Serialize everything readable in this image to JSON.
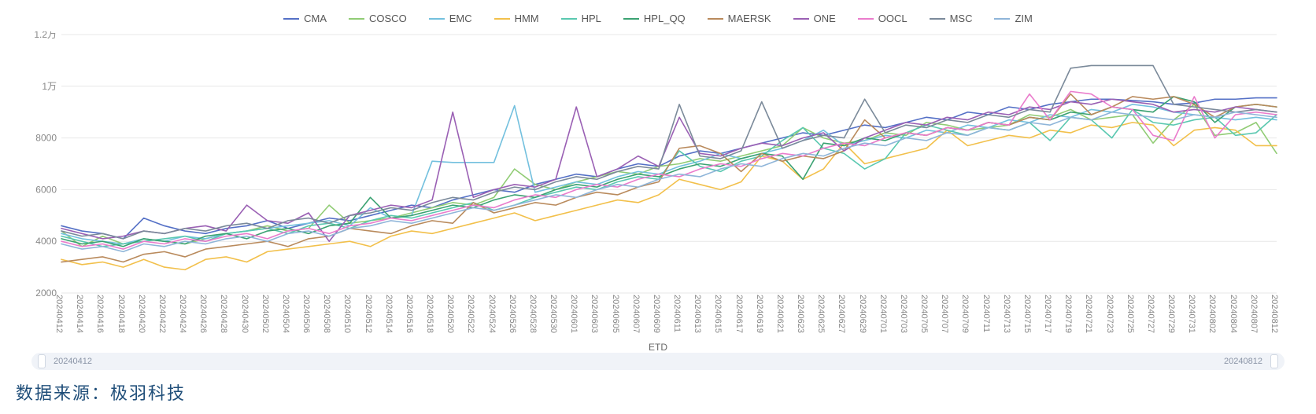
{
  "chart": {
    "type": "line",
    "background_color": "#ffffff",
    "grid_color": "#e7e7e7",
    "axis_label_color": "#888888",
    "axis_label_fontsize": 12,
    "legend_fontsize": 13,
    "legend_text_color": "#555555",
    "line_width": 1.6,
    "ylim": [
      2000,
      12000
    ],
    "yticks": [
      2000,
      4000,
      6000,
      8000,
      10000,
      12000
    ],
    "ytick_labels": [
      "2000",
      "4000",
      "6000",
      "8000",
      "1万",
      "1.2万"
    ],
    "x_axis_title": "ETD",
    "x_categories": [
      "20240412",
      "20240414",
      "20240416",
      "20240418",
      "20240420",
      "20240422",
      "20240424",
      "20240426",
      "20240428",
      "20240430",
      "20240502",
      "20240504",
      "20240506",
      "20240508",
      "20240510",
      "20240512",
      "20240514",
      "20240516",
      "20240518",
      "20240520",
      "20240522",
      "20240524",
      "20240526",
      "20240528",
      "20240530",
      "20240601",
      "20240603",
      "20240605",
      "20240607",
      "20240609",
      "20240611",
      "20240613",
      "20240615",
      "20240617",
      "20240619",
      "20240621",
      "20240623",
      "20240625",
      "20240627",
      "20240629",
      "20240701",
      "20240703",
      "20240705",
      "20240707",
      "20240709",
      "20240711",
      "20240713",
      "20240715",
      "20240717",
      "20240719",
      "20240721",
      "20240723",
      "20240725",
      "20240727",
      "20240729",
      "20240731",
      "20240802",
      "20240804",
      "20240807",
      "20240812"
    ],
    "series": [
      {
        "name": "CMA",
        "color": "#5470c6",
        "data": [
          4600,
          4400,
          4300,
          4100,
          4900,
          4600,
          4400,
          4300,
          4500,
          4600,
          4800,
          4500,
          4700,
          4900,
          4800,
          5000,
          5200,
          5400,
          5300,
          5600,
          5800,
          6000,
          5900,
          6200,
          6400,
          6600,
          6500,
          6800,
          7000,
          6900,
          7300,
          7500,
          7400,
          7600,
          7800,
          8000,
          8200,
          8100,
          8300,
          8500,
          8400,
          8600,
          8800,
          8700,
          9000,
          8900,
          9200,
          9100,
          9300,
          9400,
          9500,
          9500,
          9450,
          9400,
          9300,
          9350,
          9500,
          9500,
          9550,
          9550
        ]
      },
      {
        "name": "COSCO",
        "color": "#91cc75",
        "data": [
          4400,
          3800,
          4200,
          3900,
          4100,
          4000,
          3900,
          4100,
          4300,
          4400,
          4600,
          4400,
          4500,
          5400,
          4700,
          4800,
          4900,
          5100,
          5300,
          5500,
          5400,
          5700,
          6800,
          6200,
          6000,
          6300,
          6500,
          6700,
          6600,
          6900,
          7000,
          7200,
          7100,
          7300,
          7500,
          7700,
          8400,
          8000,
          7800,
          7900,
          8200,
          8100,
          8600,
          8500,
          8300,
          8400,
          8500,
          8900,
          8800,
          9100,
          8700,
          8800,
          8900,
          7800,
          8700,
          9300,
          8100,
          8200,
          8600,
          7400
        ]
      },
      {
        "name": "EMC",
        "color": "#73c0de",
        "data": [
          4300,
          4100,
          4000,
          3900,
          4100,
          4000,
          4200,
          4100,
          4300,
          4400,
          4500,
          4600,
          4700,
          4800,
          4600,
          5300,
          4900,
          5000,
          7100,
          7050,
          7050,
          7050,
          9250,
          5900,
          6100,
          6300,
          6200,
          6500,
          6700,
          6600,
          6900,
          7100,
          7400,
          7200,
          7400,
          7600,
          7900,
          8300,
          7700,
          7900,
          8100,
          8000,
          8300,
          8200,
          8500,
          8400,
          8700,
          8600,
          8900,
          8800,
          9100,
          9000,
          9300,
          9200,
          9000,
          8900,
          8800,
          8700,
          8800,
          8700
        ]
      },
      {
        "name": "HMM",
        "color": "#f2c04b",
        "data": [
          3300,
          3100,
          3200,
          3000,
          3300,
          3000,
          2900,
          3300,
          3400,
          3200,
          3600,
          3700,
          3800,
          3900,
          4000,
          3800,
          4200,
          4400,
          4300,
          4500,
          4700,
          4900,
          5100,
          4800,
          5000,
          5200,
          5400,
          5600,
          5500,
          5800,
          6400,
          6200,
          6000,
          6300,
          7300,
          7100,
          6400,
          6800,
          7800,
          7000,
          7200,
          7400,
          7600,
          8300,
          7700,
          7900,
          8100,
          8000,
          8300,
          8200,
          8500,
          8400,
          8600,
          8500,
          7700,
          8300,
          8400,
          8300,
          7700,
          7700
        ]
      },
      {
        "name": "HPL",
        "color": "#5ac8b0",
        "data": [
          4200,
          4000,
          3800,
          3900,
          4000,
          4100,
          4200,
          4000,
          4300,
          4400,
          4500,
          4300,
          4600,
          4700,
          4500,
          4800,
          5000,
          4900,
          5100,
          5300,
          5500,
          5200,
          5400,
          5700,
          5900,
          6100,
          6000,
          6300,
          6500,
          6400,
          7500,
          6900,
          6700,
          7100,
          7300,
          7900,
          8400,
          7600,
          7400,
          6800,
          7200,
          8200,
          8500,
          8300,
          8100,
          8400,
          8300,
          8600,
          7900,
          8800,
          8700,
          8000,
          9100,
          8600,
          8500,
          8700,
          8800,
          8100,
          8200,
          8900
        ]
      },
      {
        "name": "HPL_QQ",
        "color": "#3ba272",
        "data": [
          4100,
          3900,
          4000,
          3800,
          4100,
          4000,
          3900,
          4200,
          4300,
          4100,
          4400,
          4500,
          4300,
          4600,
          4700,
          5700,
          4900,
          5000,
          5200,
          5400,
          5300,
          5600,
          5800,
          5700,
          6000,
          6200,
          6100,
          6400,
          6600,
          6500,
          6800,
          7000,
          6900,
          7200,
          7400,
          7300,
          6400,
          7800,
          7700,
          8000,
          7900,
          8200,
          8100,
          8400,
          8300,
          8600,
          8500,
          8800,
          8700,
          9000,
          8900,
          9200,
          9100,
          9000,
          9600,
          9400,
          8600,
          9200,
          9300,
          9200
        ]
      },
      {
        "name": "MAERSK",
        "color": "#b98a5c",
        "data": [
          3200,
          3300,
          3400,
          3200,
          3500,
          3600,
          3400,
          3700,
          3800,
          3900,
          4000,
          3800,
          4100,
          4200,
          4500,
          4400,
          4300,
          4600,
          4800,
          4700,
          5500,
          5100,
          5300,
          5500,
          5400,
          5700,
          5900,
          5800,
          6100,
          6300,
          7600,
          7700,
          7400,
          6700,
          7400,
          7100,
          7300,
          7200,
          7500,
          8700,
          8000,
          8200,
          8100,
          8400,
          8300,
          8600,
          8500,
          8800,
          8700,
          9700,
          8900,
          9200,
          9600,
          9500,
          9600,
          9300,
          8800,
          9200,
          9300,
          9200
        ]
      },
      {
        "name": "ONE",
        "color": "#9a60b4",
        "data": [
          4500,
          4300,
          4100,
          4200,
          4400,
          4300,
          4500,
          4600,
          4400,
          5400,
          4800,
          4700,
          5100,
          4000,
          5000,
          5200,
          5400,
          5300,
          5600,
          9000,
          5700,
          6000,
          6200,
          6100,
          6400,
          9200,
          6500,
          6800,
          7300,
          6900,
          8800,
          7400,
          7300,
          7600,
          7800,
          7700,
          8000,
          8200,
          7500,
          8000,
          8300,
          8600,
          8500,
          8800,
          8700,
          9000,
          8900,
          9200,
          9100,
          9400,
          9300,
          9500,
          9400,
          9300,
          9000,
          9100,
          9000,
          9200,
          9100,
          9000
        ]
      },
      {
        "name": "OOCL",
        "color": "#ea7ccc",
        "data": [
          4000,
          3800,
          3900,
          3700,
          4000,
          3900,
          4100,
          4000,
          4200,
          4300,
          4100,
          4400,
          4500,
          4300,
          4600,
          4700,
          4900,
          4800,
          5000,
          5200,
          5400,
          5300,
          5600,
          5800,
          5700,
          6000,
          6200,
          6100,
          6400,
          6600,
          6500,
          6800,
          7000,
          6900,
          7200,
          7400,
          7300,
          7600,
          7800,
          7700,
          8000,
          8200,
          8100,
          8400,
          8300,
          8600,
          8500,
          9700,
          8700,
          9800,
          9700,
          9200,
          9100,
          8100,
          7900,
          9600,
          8000,
          8900,
          9000,
          8900
        ]
      },
      {
        "name": "MSC",
        "color": "#7b8a9a",
        "data": [
          4400,
          4200,
          4300,
          4100,
          4400,
          4300,
          4500,
          4400,
          4600,
          4700,
          4500,
          4800,
          4900,
          4700,
          5000,
          5100,
          5300,
          5200,
          5500,
          5700,
          5600,
          5900,
          6100,
          6000,
          6300,
          6500,
          6400,
          6700,
          6900,
          6800,
          9300,
          7300,
          7200,
          7500,
          9400,
          7600,
          7900,
          8100,
          8000,
          9500,
          8200,
          8500,
          8400,
          8700,
          8600,
          8900,
          8800,
          9100,
          9000,
          10700,
          10800,
          10800,
          10800,
          10800,
          9300,
          9200,
          9100,
          9000,
          9100,
          9000
        ]
      },
      {
        "name": "ZIM",
        "color": "#8fb5d9",
        "data": [
          3900,
          3700,
          3800,
          3600,
          3900,
          3800,
          4000,
          3900,
          4100,
          4200,
          4000,
          4300,
          4400,
          4200,
          4500,
          4600,
          4800,
          4700,
          4900,
          5100,
          5300,
          5200,
          5400,
          5600,
          5800,
          5700,
          6000,
          6200,
          6100,
          6400,
          6600,
          6500,
          6800,
          7000,
          6900,
          7200,
          7400,
          7300,
          7600,
          7800,
          7700,
          8000,
          7900,
          8200,
          8100,
          8400,
          8300,
          8600,
          8500,
          8800,
          8700,
          9000,
          8900,
          8800,
          8700,
          8900,
          8800,
          9000,
          8900,
          8800
        ]
      }
    ]
  },
  "scrub": {
    "start_label": "20240412",
    "end_label": "20240812",
    "track_color": "#f0f3f8",
    "label_color": "#8a94a6"
  },
  "source_line": {
    "text": "数据来源：极羽科技",
    "color": "#1f4e79",
    "fontsize": 22
  }
}
